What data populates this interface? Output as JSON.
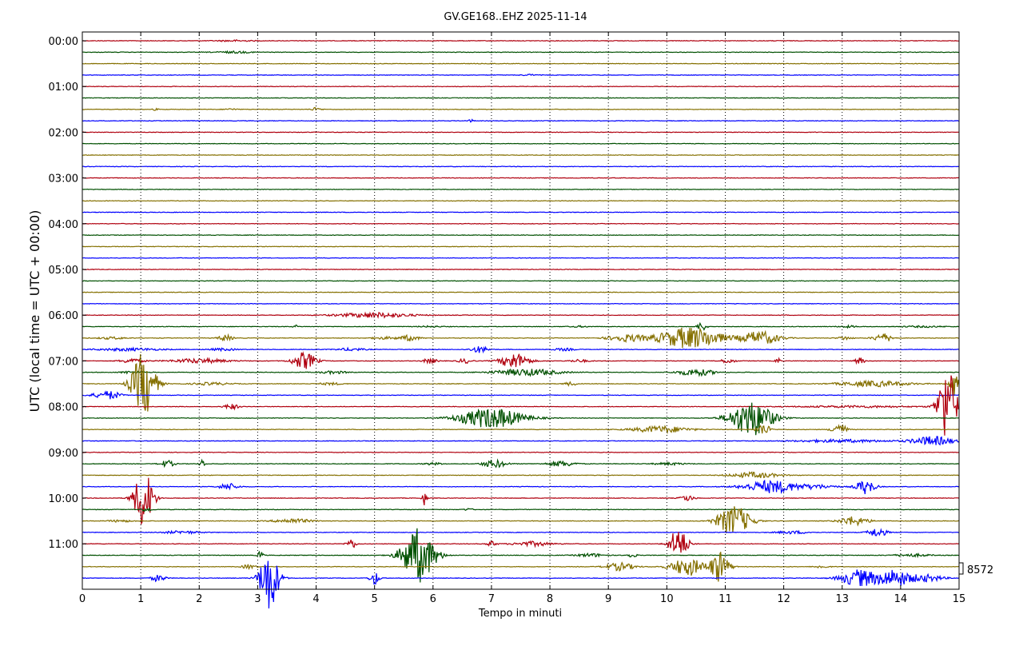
{
  "chart_data": {
    "type": "line",
    "title": "GV.GE168..EHZ 2025-11-14",
    "xlabel": "Tempo in minuti",
    "ylabel": "UTC (local time = UTC + 00:00)",
    "xlim": [
      0,
      15
    ],
    "x_ticks": [
      0,
      1,
      2,
      3,
      4,
      5,
      6,
      7,
      8,
      9,
      10,
      11,
      12,
      13,
      14,
      15
    ],
    "y_tick_labels": [
      "00:00",
      "01:00",
      "02:00",
      "03:00",
      "04:00",
      "05:00",
      "06:00",
      "07:00",
      "08:00",
      "09:00",
      "10:00",
      "11:00"
    ],
    "trace_interval_minutes": 15,
    "trace_count": 48,
    "trace_colors": [
      "#b0000f",
      "#005000",
      "#857000",
      "#0000ff"
    ],
    "grid": "vertical dotted at each minute",
    "scale_label": "8572",
    "events": [
      {
        "trace": 0,
        "minute": 2.2,
        "dur": 0.8,
        "amp": 0.06
      },
      {
        "trace": 1,
        "minute": 2.2,
        "dur": 0.8,
        "amp": 0.08
      },
      {
        "trace": 3,
        "minute": 7.5,
        "dur": 0.3,
        "amp": 0.06
      },
      {
        "trace": 6,
        "minute": 1.2,
        "dur": 0.1,
        "amp": 0.08
      },
      {
        "trace": 6,
        "minute": 2.4,
        "dur": 0.3,
        "amp": 0.06
      },
      {
        "trace": 6,
        "minute": 3.9,
        "dur": 0.2,
        "amp": 0.16
      },
      {
        "trace": 7,
        "minute": 6.6,
        "dur": 0.1,
        "amp": 0.12
      },
      {
        "trace": 24,
        "minute": 4.2,
        "dur": 1.6,
        "amp": 0.22
      },
      {
        "trace": 25,
        "minute": 3.6,
        "dur": 0.1,
        "amp": 0.12
      },
      {
        "trace": 25,
        "minute": 5.7,
        "dur": 0.5,
        "amp": 0.06
      },
      {
        "trace": 25,
        "minute": 8.3,
        "dur": 0.4,
        "amp": 0.06
      },
      {
        "trace": 25,
        "minute": 10.5,
        "dur": 0.2,
        "amp": 0.4
      },
      {
        "trace": 25,
        "minute": 12.9,
        "dur": 0.4,
        "amp": 0.08
      },
      {
        "trace": 25,
        "minute": 13.9,
        "dur": 1.0,
        "amp": 0.06
      },
      {
        "trace": 26,
        "minute": 0.2,
        "dur": 0.6,
        "amp": 0.1
      },
      {
        "trace": 26,
        "minute": 2.3,
        "dur": 0.3,
        "amp": 0.28
      },
      {
        "trace": 26,
        "minute": 4.9,
        "dur": 0.6,
        "amp": 0.1
      },
      {
        "trace": 26,
        "minute": 5.4,
        "dur": 0.4,
        "amp": 0.25
      },
      {
        "trace": 26,
        "minute": 8.9,
        "dur": 0.8,
        "amp": 0.3
      },
      {
        "trace": 26,
        "minute": 9.7,
        "dur": 1.4,
        "amp": 0.95
      },
      {
        "trace": 26,
        "minute": 11.2,
        "dur": 0.8,
        "amp": 0.6
      },
      {
        "trace": 26,
        "minute": 12.9,
        "dur": 0.3,
        "amp": 0.15
      },
      {
        "trace": 26,
        "minute": 13.5,
        "dur": 0.4,
        "amp": 0.4
      },
      {
        "trace": 27,
        "minute": 0.1,
        "dur": 1.4,
        "amp": 0.12
      },
      {
        "trace": 27,
        "minute": 2.1,
        "dur": 0.6,
        "amp": 0.1
      },
      {
        "trace": 27,
        "minute": 4.3,
        "dur": 0.6,
        "amp": 0.12
      },
      {
        "trace": 27,
        "minute": 6.6,
        "dur": 0.4,
        "amp": 0.28
      },
      {
        "trace": 27,
        "minute": 8.0,
        "dur": 0.5,
        "amp": 0.1
      },
      {
        "trace": 28,
        "minute": 0.6,
        "dur": 0.5,
        "amp": 0.2
      },
      {
        "trace": 28,
        "minute": 1.4,
        "dur": 1.2,
        "amp": 0.2
      },
      {
        "trace": 28,
        "minute": 3.55,
        "dur": 0.5,
        "amp": 0.75
      },
      {
        "trace": 28,
        "minute": 5.8,
        "dur": 0.3,
        "amp": 0.22
      },
      {
        "trace": 28,
        "minute": 6.4,
        "dur": 0.3,
        "amp": 0.2
      },
      {
        "trace": 28,
        "minute": 7.1,
        "dur": 0.6,
        "amp": 0.7
      },
      {
        "trace": 28,
        "minute": 8.3,
        "dur": 0.4,
        "amp": 0.12
      },
      {
        "trace": 28,
        "minute": 10.9,
        "dur": 0.3,
        "amp": 0.2
      },
      {
        "trace": 28,
        "minute": 11.85,
        "dur": 0.1,
        "amp": 0.3
      },
      {
        "trace": 28,
        "minute": 13.2,
        "dur": 0.2,
        "amp": 0.3
      },
      {
        "trace": 29,
        "minute": 0.6,
        "dur": 0.5,
        "amp": 0.12
      },
      {
        "trace": 29,
        "minute": 4.0,
        "dur": 0.6,
        "amp": 0.12
      },
      {
        "trace": 29,
        "minute": 6.9,
        "dur": 1.4,
        "amp": 0.3
      },
      {
        "trace": 29,
        "minute": 10.1,
        "dur": 0.8,
        "amp": 0.3
      },
      {
        "trace": 30,
        "minute": 0.8,
        "dur": 0.5,
        "amp": 2.8
      },
      {
        "trace": 30,
        "minute": 1.8,
        "dur": 0.8,
        "amp": 0.12
      },
      {
        "trace": 30,
        "minute": 4.0,
        "dur": 0.5,
        "amp": 0.1
      },
      {
        "trace": 30,
        "minute": 8.2,
        "dur": 0.3,
        "amp": 0.15
      },
      {
        "trace": 30,
        "minute": 12.8,
        "dur": 1.5,
        "amp": 0.25
      },
      {
        "trace": 30,
        "minute": 14.8,
        "dur": 0.2,
        "amp": 1.2
      },
      {
        "trace": 31,
        "minute": 0.0,
        "dur": 0.6,
        "amp": 0.15
      },
      {
        "trace": 31,
        "minute": 0.3,
        "dur": 0.4,
        "amp": 0.3
      },
      {
        "trace": 32,
        "minute": 2.4,
        "dur": 0.3,
        "amp": 0.25
      },
      {
        "trace": 32,
        "minute": 12.0,
        "dur": 2.5,
        "amp": 0.08
      },
      {
        "trace": 32,
        "minute": 14.6,
        "dur": 0.4,
        "amp": 3.5
      },
      {
        "trace": 33,
        "minute": 6.3,
        "dur": 1.4,
        "amp": 0.9
      },
      {
        "trace": 33,
        "minute": 11.0,
        "dur": 0.9,
        "amp": 1.6
      },
      {
        "trace": 34,
        "minute": 9.3,
        "dur": 1.2,
        "amp": 0.3
      },
      {
        "trace": 34,
        "minute": 11.5,
        "dur": 0.3,
        "amp": 0.5
      },
      {
        "trace": 34,
        "minute": 12.8,
        "dur": 0.3,
        "amp": 0.6
      },
      {
        "trace": 35,
        "minute": 12.0,
        "dur": 2.0,
        "amp": 0.12
      },
      {
        "trace": 35,
        "minute": 14.1,
        "dur": 0.9,
        "amp": 0.4
      },
      {
        "trace": 37,
        "minute": 1.3,
        "dur": 0.3,
        "amp": 0.3
      },
      {
        "trace": 37,
        "minute": 2.0,
        "dur": 0.1,
        "amp": 0.4
      },
      {
        "trace": 37,
        "minute": 5.8,
        "dur": 0.4,
        "amp": 0.1
      },
      {
        "trace": 37,
        "minute": 6.8,
        "dur": 0.5,
        "amp": 0.35
      },
      {
        "trace": 37,
        "minute": 7.9,
        "dur": 0.6,
        "amp": 0.25
      },
      {
        "trace": 37,
        "minute": 9.7,
        "dur": 0.7,
        "amp": 0.1
      },
      {
        "trace": 38,
        "minute": 11.0,
        "dur": 1.0,
        "amp": 0.25
      },
      {
        "trace": 39,
        "minute": 2.3,
        "dur": 0.4,
        "amp": 0.3
      },
      {
        "trace": 39,
        "minute": 11.2,
        "dur": 1.2,
        "amp": 0.55
      },
      {
        "trace": 39,
        "minute": 12.2,
        "dur": 0.8,
        "amp": 0.15
      },
      {
        "trace": 39,
        "minute": 13.2,
        "dur": 0.4,
        "amp": 0.65
      },
      {
        "trace": 40,
        "minute": 0.85,
        "dur": 0.4,
        "amp": 2.6
      },
      {
        "trace": 40,
        "minute": 5.8,
        "dur": 0.1,
        "amp": 0.6
      },
      {
        "trace": 40,
        "minute": 10.2,
        "dur": 0.3,
        "amp": 0.25
      },
      {
        "trace": 41,
        "minute": 1.0,
        "dur": 0.2,
        "amp": 0.2
      },
      {
        "trace": 41,
        "minute": 6.5,
        "dur": 0.2,
        "amp": 0.1
      },
      {
        "trace": 42,
        "minute": 0.4,
        "dur": 0.5,
        "amp": 0.1
      },
      {
        "trace": 42,
        "minute": 3.2,
        "dur": 0.8,
        "amp": 0.2
      },
      {
        "trace": 42,
        "minute": 10.8,
        "dur": 0.7,
        "amp": 1.35
      },
      {
        "trace": 42,
        "minute": 12.9,
        "dur": 0.6,
        "amp": 0.4
      },
      {
        "trace": 43,
        "minute": 1.3,
        "dur": 0.8,
        "amp": 0.12
      },
      {
        "trace": 43,
        "minute": 11.8,
        "dur": 0.7,
        "amp": 0.12
      },
      {
        "trace": 43,
        "minute": 13.4,
        "dur": 0.4,
        "amp": 0.4
      },
      {
        "trace": 44,
        "minute": 4.5,
        "dur": 0.2,
        "amp": 0.45
      },
      {
        "trace": 44,
        "minute": 6.9,
        "dur": 0.2,
        "amp": 0.25
      },
      {
        "trace": 44,
        "minute": 7.3,
        "dur": 0.8,
        "amp": 0.2
      },
      {
        "trace": 44,
        "minute": 10.0,
        "dur": 0.4,
        "amp": 1.35
      },
      {
        "trace": 45,
        "minute": 3.0,
        "dur": 0.1,
        "amp": 0.5
      },
      {
        "trace": 45,
        "minute": 5.4,
        "dur": 0.7,
        "amp": 2.4
      },
      {
        "trace": 45,
        "minute": 8.4,
        "dur": 0.6,
        "amp": 0.15
      },
      {
        "trace": 45,
        "minute": 9.3,
        "dur": 0.2,
        "amp": 0.2
      },
      {
        "trace": 45,
        "minute": 13.8,
        "dur": 0.8,
        "amp": 0.12
      },
      {
        "trace": 46,
        "minute": 2.7,
        "dur": 0.3,
        "amp": 0.2
      },
      {
        "trace": 46,
        "minute": 8.9,
        "dur": 0.6,
        "amp": 0.35
      },
      {
        "trace": 46,
        "minute": 10.0,
        "dur": 0.7,
        "amp": 0.8
      },
      {
        "trace": 46,
        "minute": 10.7,
        "dur": 0.4,
        "amp": 1.35
      },
      {
        "trace": 46,
        "minute": 12.5,
        "dur": 0.3,
        "amp": 0.12
      },
      {
        "trace": 47,
        "minute": 1.15,
        "dur": 0.3,
        "amp": 0.3
      },
      {
        "trace": 47,
        "minute": 3.0,
        "dur": 0.4,
        "amp": 2.8
      },
      {
        "trace": 47,
        "minute": 4.9,
        "dur": 0.2,
        "amp": 0.6
      },
      {
        "trace": 47,
        "minute": 12.9,
        "dur": 0.8,
        "amp": 0.75
      },
      {
        "trace": 47,
        "minute": 13.55,
        "dur": 0.7,
        "amp": 0.75
      },
      {
        "trace": 47,
        "minute": 14.1,
        "dur": 0.7,
        "amp": 0.3
      }
    ]
  }
}
